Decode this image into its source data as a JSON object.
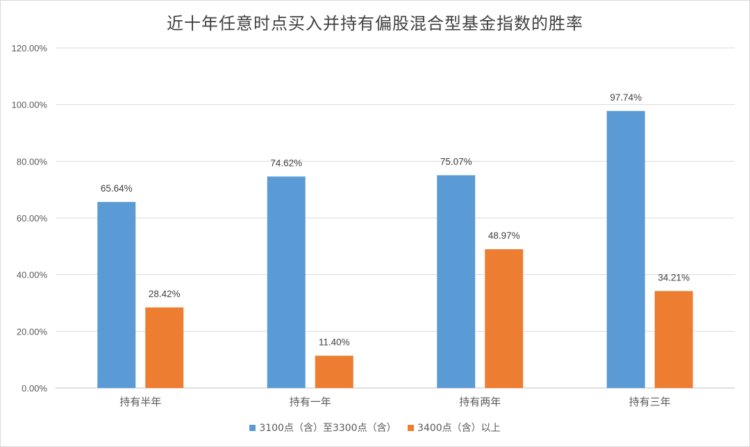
{
  "chart_data": {
    "type": "bar",
    "title": "近十年任意时点买入并持有偏股混合型基金指数的胜率",
    "categories": [
      "持有半年",
      "持有一年",
      "持有两年",
      "持有三年"
    ],
    "series": [
      {
        "name": "3100点（含）至3300点（含）",
        "color": "#5b9bd5",
        "values": [
          65.64,
          74.62,
          75.07,
          97.74
        ],
        "labels": [
          "65.64%",
          "74.62%",
          "75.07%",
          "97.74%"
        ]
      },
      {
        "name": "3400点（含）以上",
        "color": "#ed7d31",
        "values": [
          28.42,
          11.4,
          48.97,
          34.21
        ],
        "labels": [
          "28.42%",
          "11.40%",
          "48.97%",
          "34.21%"
        ]
      }
    ],
    "ylim": [
      0,
      120
    ],
    "yticks": [
      0,
      20,
      40,
      60,
      80,
      100,
      120
    ],
    "ytick_labels": [
      "0.00%",
      "20.00%",
      "40.00%",
      "60.00%",
      "80.00%",
      "100.00%",
      "120.00%"
    ],
    "grid": true,
    "legend": "bottom"
  }
}
